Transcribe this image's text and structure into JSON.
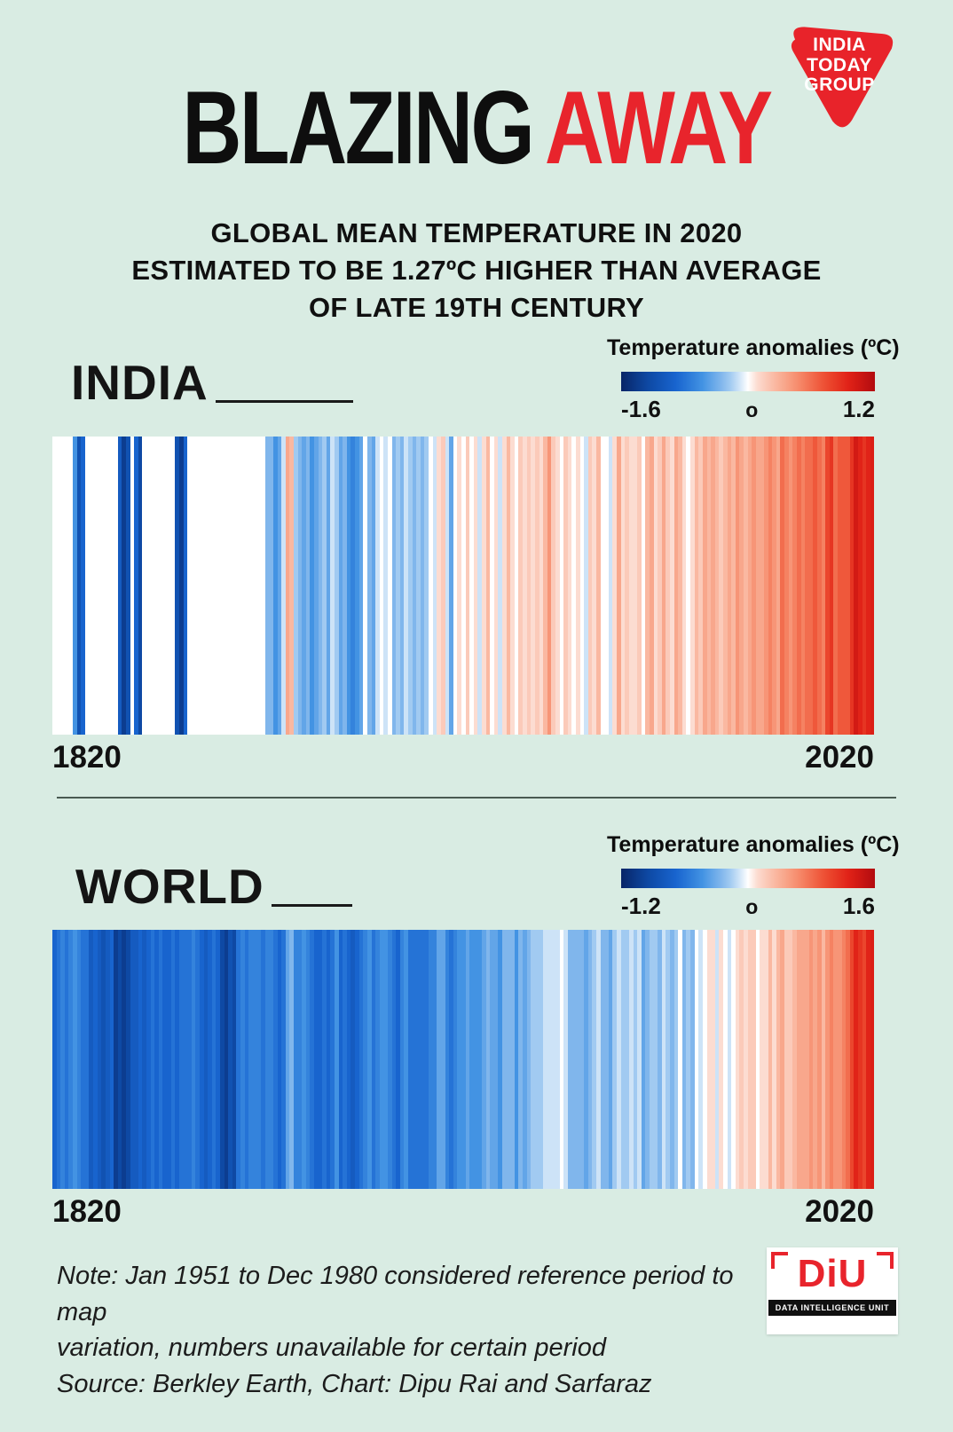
{
  "page": {
    "background": "#d9ece3",
    "accent_red": "#e8242c"
  },
  "brand": {
    "logo_lines": [
      "INDIA",
      "TODAY",
      "GROUP"
    ]
  },
  "header": {
    "title_black": "BLAZING",
    "title_red": "AWAY",
    "subtitle_line1": "GLOBAL MEAN TEMPERATURE IN 2020",
    "subtitle_line2": "ESTIMATED TO BE 1.27ºC HIGHER THAN AVERAGE",
    "subtitle_line3": "OF LATE 19TH CENTURY"
  },
  "footer": {
    "note_line1": "Note: Jan 1951 to Dec 1980 considered reference period to map",
    "note_line2": "variation, numbers unavailable for certain period",
    "source": "Source: Berkley Earth, Chart: Dipu Rai and Sarfaraz",
    "diu_name": "DiU",
    "diu_tagline": "DATA INTELLIGENCE UNIT"
  },
  "chart_data": [
    {
      "type": "heatmap",
      "title": "INDIA",
      "legend_title": "Temperature anomalies (ºC)",
      "legend_min_label": "-1.6",
      "legend_mid_label": "o",
      "legend_max_label": "1.2",
      "color_scale_domain": [
        -1.6,
        1.2
      ],
      "unit": "ºC",
      "x_start_label": "1820",
      "x_end_label": "2020",
      "x_range": [
        1820,
        2020
      ],
      "missing_value_color": "#ffffff",
      "values": [
        null,
        null,
        null,
        null,
        null,
        -0.7,
        -1.2,
        -1.0,
        null,
        null,
        null,
        null,
        null,
        null,
        null,
        null,
        -1.1,
        -1.4,
        -1.2,
        null,
        -1.0,
        -1.3,
        null,
        null,
        null,
        null,
        null,
        null,
        null,
        null,
        -1.2,
        -1.4,
        -1.0,
        null,
        null,
        null,
        null,
        null,
        null,
        null,
        null,
        null,
        null,
        null,
        null,
        null,
        null,
        null,
        null,
        null,
        null,
        null,
        -0.5,
        -0.5,
        -0.7,
        -0.6,
        -0.3,
        0.2,
        0.1,
        -0.4,
        -0.5,
        -0.6,
        -0.5,
        -0.7,
        -0.6,
        -0.5,
        -0.4,
        -0.6,
        -0.3,
        -0.4,
        -0.6,
        -0.5,
        -0.7,
        -0.8,
        -0.7,
        -0.6,
        -0.2,
        -0.5,
        -0.6,
        -0.3,
        -0.2,
        -0.3,
        -0.2,
        -0.5,
        -0.4,
        -0.5,
        -0.3,
        -0.4,
        -0.5,
        -0.4,
        -0.5,
        -0.4,
        -0.2,
        -0.3,
        -0.1,
        0.0,
        -0.3,
        -0.6,
        -0.2,
        -0.1,
        -0.2,
        0.0,
        -0.2,
        -0.1,
        -0.3,
        -0.1,
        0.1,
        -0.2,
        -0.1,
        -0.3,
        -0.1,
        0.1,
        -0.1,
        -0.2,
        0.0,
        -0.1,
        0.0,
        -0.1,
        0.0,
        -0.1,
        0.1,
        0.3,
        0.0,
        -0.1,
        -0.2,
        0.0,
        -0.1,
        -0.2,
        -0.1,
        -0.2,
        -0.3,
        0.0,
        -0.1,
        0.1,
        -0.2,
        -0.2,
        -0.3,
        -0.1,
        0.2,
        -0.1,
        0.0,
        -0.1,
        -0.1,
        0.0,
        -0.2,
        0.1,
        0.2,
        -0.1,
        0.0,
        0.2,
        0.0,
        -0.1,
        0.2,
        0.1,
        -0.1,
        -0.2,
        -0.1,
        0.1,
        0.0,
        0.2,
        0.1,
        0.2,
        0.1,
        0.0,
        0.1,
        0.2,
        0.1,
        0.3,
        0.2,
        0.1,
        0.2,
        0.3,
        0.2,
        0.2,
        0.3,
        0.4,
        0.3,
        0.2,
        0.5,
        0.4,
        0.3,
        0.4,
        0.5,
        0.4,
        0.5,
        0.5,
        0.6,
        0.5,
        0.4,
        0.7,
        0.8,
        0.5,
        0.6,
        0.6,
        0.6,
        0.8,
        1.0,
        0.9,
        0.8,
        0.9,
        0.95
      ]
    },
    {
      "type": "heatmap",
      "title": "WORLD",
      "legend_title": "Temperature anomalies (ºC)",
      "legend_min_label": "-1.2",
      "legend_mid_label": "o",
      "legend_max_label": "1.6",
      "color_scale_domain": [
        -1.2,
        1.6
      ],
      "unit": "ºC",
      "x_start_label": "1820",
      "x_end_label": "2020",
      "x_range": [
        1820,
        2020
      ],
      "missing_value_color": "#ffffff",
      "values": [
        -0.6,
        -0.5,
        -0.4,
        -0.5,
        -0.4,
        -0.3,
        -0.4,
        -0.5,
        -0.5,
        -0.7,
        -0.6,
        -0.7,
        -0.8,
        -0.7,
        -0.6,
        -1.0,
        -0.9,
        -1.0,
        -0.9,
        -0.7,
        -0.7,
        -0.6,
        -0.7,
        -0.6,
        -0.5,
        -0.6,
        -0.5,
        -0.6,
        -0.6,
        -0.5,
        -0.6,
        -0.5,
        -0.5,
        -0.5,
        -0.4,
        -0.5,
        -0.6,
        -0.7,
        -0.6,
        -0.5,
        -0.6,
        -0.9,
        -1.0,
        -0.8,
        -0.9,
        -0.5,
        -0.4,
        -0.5,
        -0.4,
        -0.4,
        -0.4,
        -0.5,
        -0.4,
        -0.4,
        -0.5,
        -0.6,
        -0.5,
        -0.2,
        -0.1,
        -0.4,
        -0.4,
        -0.3,
        -0.4,
        -0.5,
        -0.6,
        -0.6,
        -0.5,
        -0.6,
        -0.5,
        -0.3,
        -0.6,
        -0.5,
        -0.6,
        -0.7,
        -0.6,
        -0.5,
        -0.4,
        -0.3,
        -0.5,
        -0.4,
        -0.3,
        -0.3,
        -0.4,
        -0.5,
        -0.6,
        -0.4,
        -0.3,
        -0.5,
        -0.5,
        -0.5,
        -0.5,
        -0.5,
        -0.4,
        -0.4,
        -0.2,
        -0.2,
        -0.4,
        -0.5,
        -0.4,
        -0.3,
        -0.3,
        -0.2,
        -0.3,
        -0.3,
        -0.3,
        -0.2,
        -0.1,
        -0.2,
        -0.2,
        -0.3,
        -0.1,
        -0.1,
        -0.1,
        -0.3,
        -0.1,
        -0.2,
        -0.1,
        0.0,
        0.0,
        0.0,
        0.1,
        0.1,
        0.1,
        0.1,
        0.2,
        0.1,
        -0.1,
        -0.1,
        -0.1,
        -0.1,
        -0.2,
        -0.1,
        0.0,
        0.1,
        -0.1,
        -0.1,
        -0.2,
        0.0,
        0.1,
        0.0,
        0.0,
        0.1,
        0.0,
        0.1,
        -0.2,
        -0.1,
        0.0,
        0.0,
        -0.1,
        0.1,
        0.0,
        -0.1,
        0.0,
        0.2,
        -0.1,
        0.0,
        -0.1,
        0.2,
        0.1,
        0.2,
        0.3,
        0.3,
        0.1,
        0.3,
        0.2,
        0.1,
        0.2,
        0.3,
        0.4,
        0.3,
        0.4,
        0.4,
        0.2,
        0.3,
        0.3,
        0.5,
        0.3,
        0.5,
        0.6,
        0.4,
        0.4,
        0.5,
        0.6,
        0.6,
        0.6,
        0.7,
        0.6,
        0.7,
        0.5,
        0.7,
        0.8,
        0.7,
        0.7,
        0.8,
        0.9,
        1.1,
        1.3,
        1.2,
        1.1,
        1.3,
        1.35
      ]
    }
  ]
}
